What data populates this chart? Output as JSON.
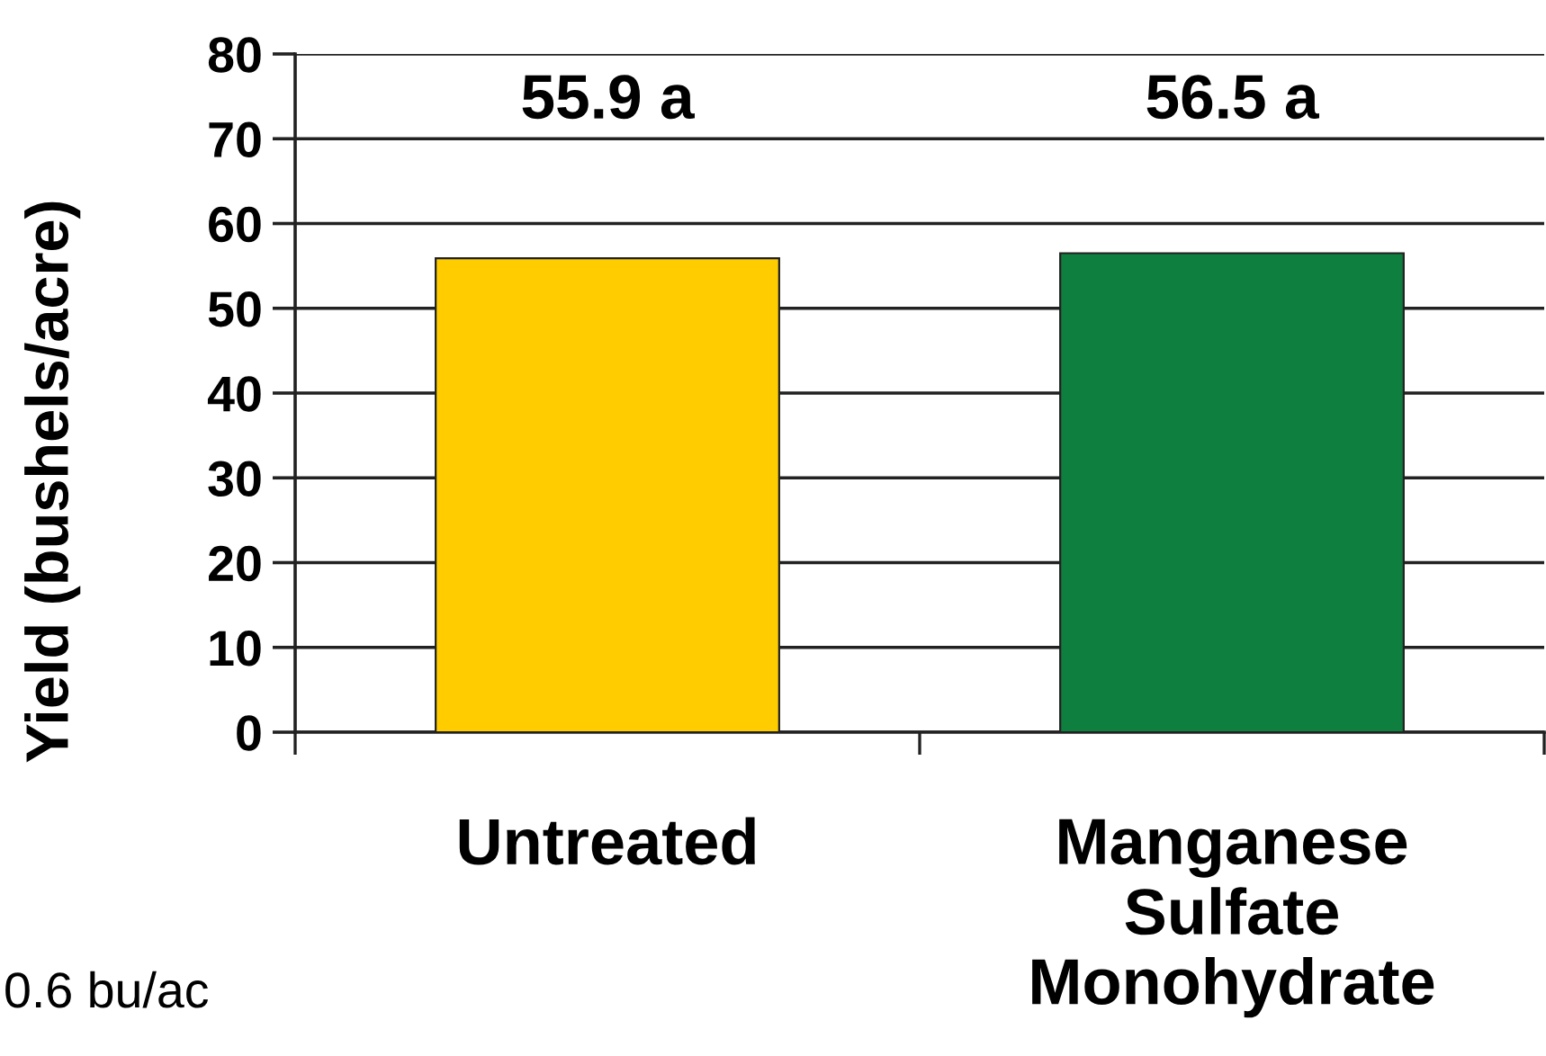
{
  "chart_data": {
    "type": "bar",
    "ylabel": "Yield (bushels/acre)",
    "categories": [
      "Untreated",
      "Manganese\nSulfate\nMonohydrate"
    ],
    "values": [
      55.9,
      56.5
    ],
    "colors": [
      "#ffcc00",
      "#0e7f3e"
    ],
    "value_labels": [
      "55.9 a",
      "56.5 a"
    ],
    "ylim": [
      0,
      80
    ],
    "yticks": [
      0,
      10,
      20,
      30,
      40,
      50,
      60,
      70,
      80
    ],
    "grid": "y",
    "annotations": [
      "0.6 bu/ac"
    ]
  }
}
